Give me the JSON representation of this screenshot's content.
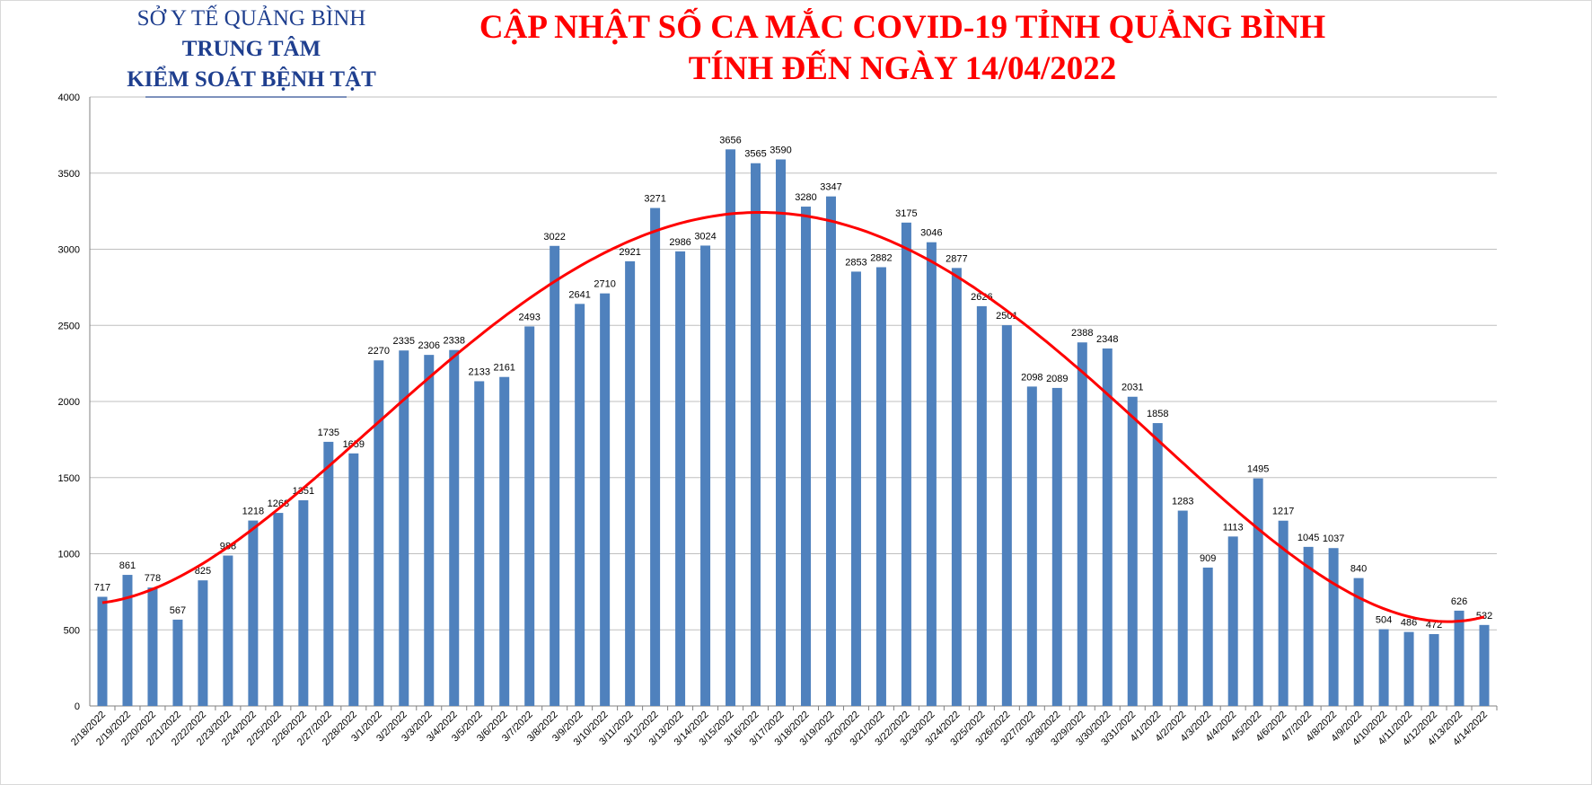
{
  "header": {
    "org_line1": "SỞ Y TẾ QUẢNG BÌNH",
    "org_line2": "TRUNG TÂM",
    "org_line3": "KIỂM SOÁT BỆNH TẬT",
    "title_line1": "CẬP NHẬT SỐ CA MẮC COVID-19 TỈNH QUẢNG BÌNH",
    "title_line2": "TÍNH ĐẾN NGÀY 14/04/2022"
  },
  "colors": {
    "bar": "#4f81bd",
    "trend": "#ff0000",
    "grid": "#bfbfbf",
    "title": "#ff0000",
    "org": "#1f3f8f"
  },
  "chart_data": {
    "type": "bar",
    "title": "CẬP NHẬT SỐ CA MẮC COVID-19 TỈNH QUẢNG BÌNH TÍNH ĐẾN NGÀY 14/04/2022",
    "xlabel": "",
    "ylabel": "",
    "ylim": [
      0,
      4000
    ],
    "yticks": [
      0,
      500,
      1000,
      1500,
      2000,
      2500,
      3000,
      3500,
      4000
    ],
    "grid": true,
    "trendline": "polynomial",
    "categories": [
      "2/18/2022",
      "2/19/2022",
      "2/20/2022",
      "2/21/2022",
      "2/22/2022",
      "2/23/2022",
      "2/24/2022",
      "2/25/2022",
      "2/26/2022",
      "2/27/2022",
      "2/28/2022",
      "3/1/2022",
      "3/2/2022",
      "3/3/2022",
      "3/4/2022",
      "3/5/2022",
      "3/6/2022",
      "3/7/2022",
      "3/8/2022",
      "3/9/2022",
      "3/10/2022",
      "3/11/2022",
      "3/12/2022",
      "3/13/2022",
      "3/14/2022",
      "3/15/2022",
      "3/16/2022",
      "3/17/2022",
      "3/18/2022",
      "3/19/2022",
      "3/20/2022",
      "3/21/2022",
      "3/22/2022",
      "3/23/2022",
      "3/24/2022",
      "3/25/2022",
      "3/26/2022",
      "3/27/2022",
      "3/28/2022",
      "3/29/2022",
      "3/30/2022",
      "3/31/2022",
      "4/1/2022",
      "4/2/2022",
      "4/3/2022",
      "4/4/2022",
      "4/5/2022",
      "4/6/2022",
      "4/7/2022",
      "4/8/2022",
      "4/9/2022",
      "4/10/2022",
      "4/11/2022",
      "4/12/2022",
      "4/13/2022",
      "4/14/2022"
    ],
    "values": [
      717,
      861,
      778,
      567,
      825,
      988,
      1218,
      1268,
      1351,
      1735,
      1659,
      2270,
      2335,
      2306,
      2338,
      2133,
      2161,
      2493,
      3022,
      2641,
      2710,
      2921,
      3271,
      2986,
      3024,
      3656,
      3565,
      3590,
      3280,
      3347,
      2853,
      2882,
      3175,
      3046,
      2877,
      2626,
      2501,
      2098,
      2089,
      2388,
      2348,
      2031,
      1858,
      1283,
      909,
      1113,
      1495,
      1217,
      1045,
      1037,
      840,
      504,
      486,
      472,
      626,
      532
    ]
  }
}
